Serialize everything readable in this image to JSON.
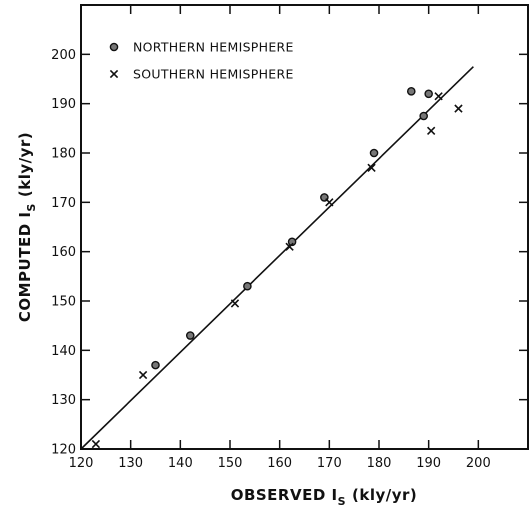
{
  "chart_data": {
    "type": "scatter",
    "xlabel": {
      "main": "OBSERVED I",
      "sub": "S",
      "unit": "(kly/yr)"
    },
    "ylabel": {
      "main": "COMPUTED I",
      "sub": "S",
      "unit": "(kly/yr)"
    },
    "xlim": [
      120,
      210
    ],
    "ylim": [
      120,
      210
    ],
    "x_ticks": [
      120,
      130,
      140,
      150,
      160,
      170,
      180,
      190,
      200
    ],
    "y_ticks": [
      120,
      130,
      140,
      150,
      160,
      170,
      180,
      190,
      200
    ],
    "grid": false,
    "legend_position": "top-left",
    "reference_line": {
      "x": [
        120,
        199
      ],
      "y": [
        120,
        197.5
      ]
    },
    "series": [
      {
        "name": "NORTHERN HEMISPHERE",
        "marker": "circle",
        "points": [
          {
            "x": 135,
            "y": 137
          },
          {
            "x": 142,
            "y": 143
          },
          {
            "x": 153.5,
            "y": 153
          },
          {
            "x": 162.5,
            "y": 162
          },
          {
            "x": 169,
            "y": 171
          },
          {
            "x": 179,
            "y": 180
          },
          {
            "x": 186.5,
            "y": 192.5
          },
          {
            "x": 189,
            "y": 187.5
          },
          {
            "x": 190,
            "y": 192
          }
        ]
      },
      {
        "name": "SOUTHERN HEMISPHERE",
        "marker": "x",
        "points": [
          {
            "x": 123,
            "y": 121
          },
          {
            "x": 132.5,
            "y": 135
          },
          {
            "x": 151,
            "y": 149.5
          },
          {
            "x": 162,
            "y": 161
          },
          {
            "x": 170,
            "y": 170
          },
          {
            "x": 178.5,
            "y": 177
          },
          {
            "x": 190.5,
            "y": 184.5
          },
          {
            "x": 192,
            "y": 191.5
          },
          {
            "x": 196,
            "y": 189
          }
        ]
      }
    ]
  }
}
